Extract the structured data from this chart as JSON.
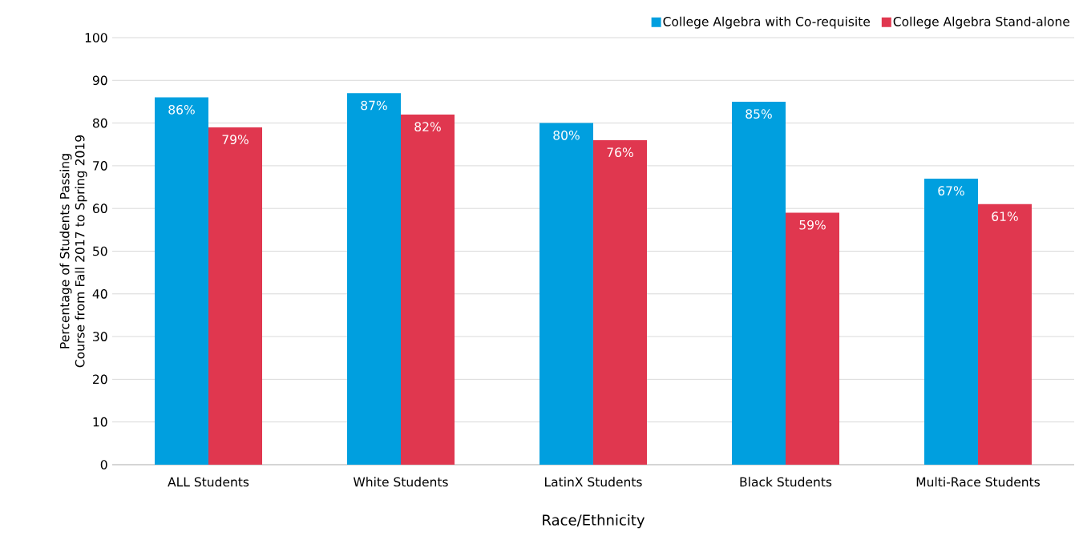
{
  "chart_data": {
    "type": "bar",
    "categories": [
      "ALL Students",
      "White Students",
      "LatinX Students",
      "Black Students",
      "Multi-Race Students"
    ],
    "series": [
      {
        "name": "College Algebra with Co-requisite",
        "color": "#009fdf",
        "values": [
          86,
          87,
          80,
          85,
          67
        ],
        "value_labels": [
          "86%",
          "87%",
          "80%",
          "85%",
          "67%"
        ]
      },
      {
        "name": "College Algebra Stand-alone",
        "color": "#e0374f",
        "values": [
          79,
          82,
          76,
          59,
          61
        ],
        "value_labels": [
          "79%",
          "82%",
          "76%",
          "59%",
          "61%"
        ]
      }
    ],
    "xlabel": "Race/Ethnicity",
    "ylabel": "Percentage of Students Passing Course from Fall 2017 to Spring 2019",
    "ylim": [
      0,
      100
    ],
    "yticks": [
      0,
      10,
      20,
      30,
      40,
      50,
      60,
      70,
      80,
      90,
      100
    ],
    "grid": "y",
    "legend": "top right"
  }
}
